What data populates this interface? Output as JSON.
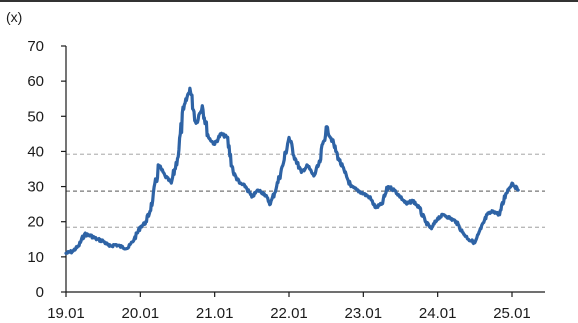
{
  "chart_data": {
    "type": "line",
    "unit_label": "(x)",
    "ylim": [
      0,
      70
    ],
    "yticks": [
      "0",
      "10",
      "20",
      "30",
      "40",
      "50",
      "60",
      "70"
    ],
    "xticks": [
      "19.01",
      "20.01",
      "21.01",
      "22.01",
      "23.01",
      "24.01",
      "25.01"
    ],
    "reference_lines": [
      {
        "value": 39.2,
        "style": "dashed",
        "color": "#b8b8b8"
      },
      {
        "value": 28.7,
        "style": "dashed",
        "color": "#777777"
      },
      {
        "value": 18.4,
        "style": "dashed",
        "color": "#b8b8b8"
      }
    ],
    "series": [
      {
        "color": "#2e63a5",
        "points": [
          [
            "19.01",
            11
          ],
          [
            "19.02",
            11.5
          ],
          [
            "19.03",
            13
          ],
          [
            "19.04",
            16.5
          ],
          [
            "19.05",
            16
          ],
          [
            "19.06",
            15
          ],
          [
            "19.07",
            14.5
          ],
          [
            "19.08",
            13
          ],
          [
            "19.09",
            13.5
          ],
          [
            "19.10",
            12.8
          ],
          [
            "19.11",
            12.5
          ],
          [
            "19.12",
            15
          ],
          [
            "20.01",
            18.5
          ],
          [
            "20.02",
            20
          ],
          [
            "20.03",
            26
          ],
          [
            "20.04",
            36
          ],
          [
            "20.05",
            33
          ],
          [
            "20.06",
            31
          ],
          [
            "20.07",
            38
          ],
          [
            "20.08",
            52
          ],
          [
            "20.09",
            58
          ],
          [
            "20.10",
            48
          ],
          [
            "20.11",
            53
          ],
          [
            "20.12",
            44
          ],
          [
            "21.01",
            42
          ],
          [
            "21.02",
            45
          ],
          [
            "21.03",
            44
          ],
          [
            "21.04",
            34
          ],
          [
            "21.05",
            31
          ],
          [
            "21.06",
            30
          ],
          [
            "21.07",
            27
          ],
          [
            "21.08",
            29
          ],
          [
            "21.09",
            28
          ],
          [
            "21.10",
            25
          ],
          [
            "21.11",
            30
          ],
          [
            "21.12",
            36
          ],
          [
            "22.01",
            44
          ],
          [
            "22.02",
            38
          ],
          [
            "22.03",
            34
          ],
          [
            "22.04",
            36
          ],
          [
            "22.05",
            33
          ],
          [
            "22.06",
            37
          ],
          [
            "22.07",
            47
          ],
          [
            "22.08",
            43
          ],
          [
            "22.09",
            38
          ],
          [
            "22.10",
            34
          ],
          [
            "22.11",
            30
          ],
          [
            "22.12",
            29
          ],
          [
            "23.01",
            28
          ],
          [
            "23.02",
            27
          ],
          [
            "23.03",
            24
          ],
          [
            "23.04",
            25
          ],
          [
            "23.05",
            30
          ],
          [
            "23.06",
            29
          ],
          [
            "23.07",
            27
          ],
          [
            "23.08",
            25
          ],
          [
            "23.09",
            26
          ],
          [
            "23.10",
            24
          ],
          [
            "23.11",
            20
          ],
          [
            "23.12",
            18
          ],
          [
            "24.01",
            21
          ],
          [
            "24.02",
            22
          ],
          [
            "24.03",
            21
          ],
          [
            "24.04",
            20
          ],
          [
            "24.05",
            17
          ],
          [
            "24.06",
            15
          ],
          [
            "24.07",
            14
          ],
          [
            "24.08",
            18
          ],
          [
            "24.09",
            22
          ],
          [
            "24.10",
            23
          ],
          [
            "24.11",
            22
          ],
          [
            "24.12",
            28
          ],
          [
            "25.01",
            31
          ],
          [
            "25.02",
            29
          ]
        ]
      }
    ]
  }
}
